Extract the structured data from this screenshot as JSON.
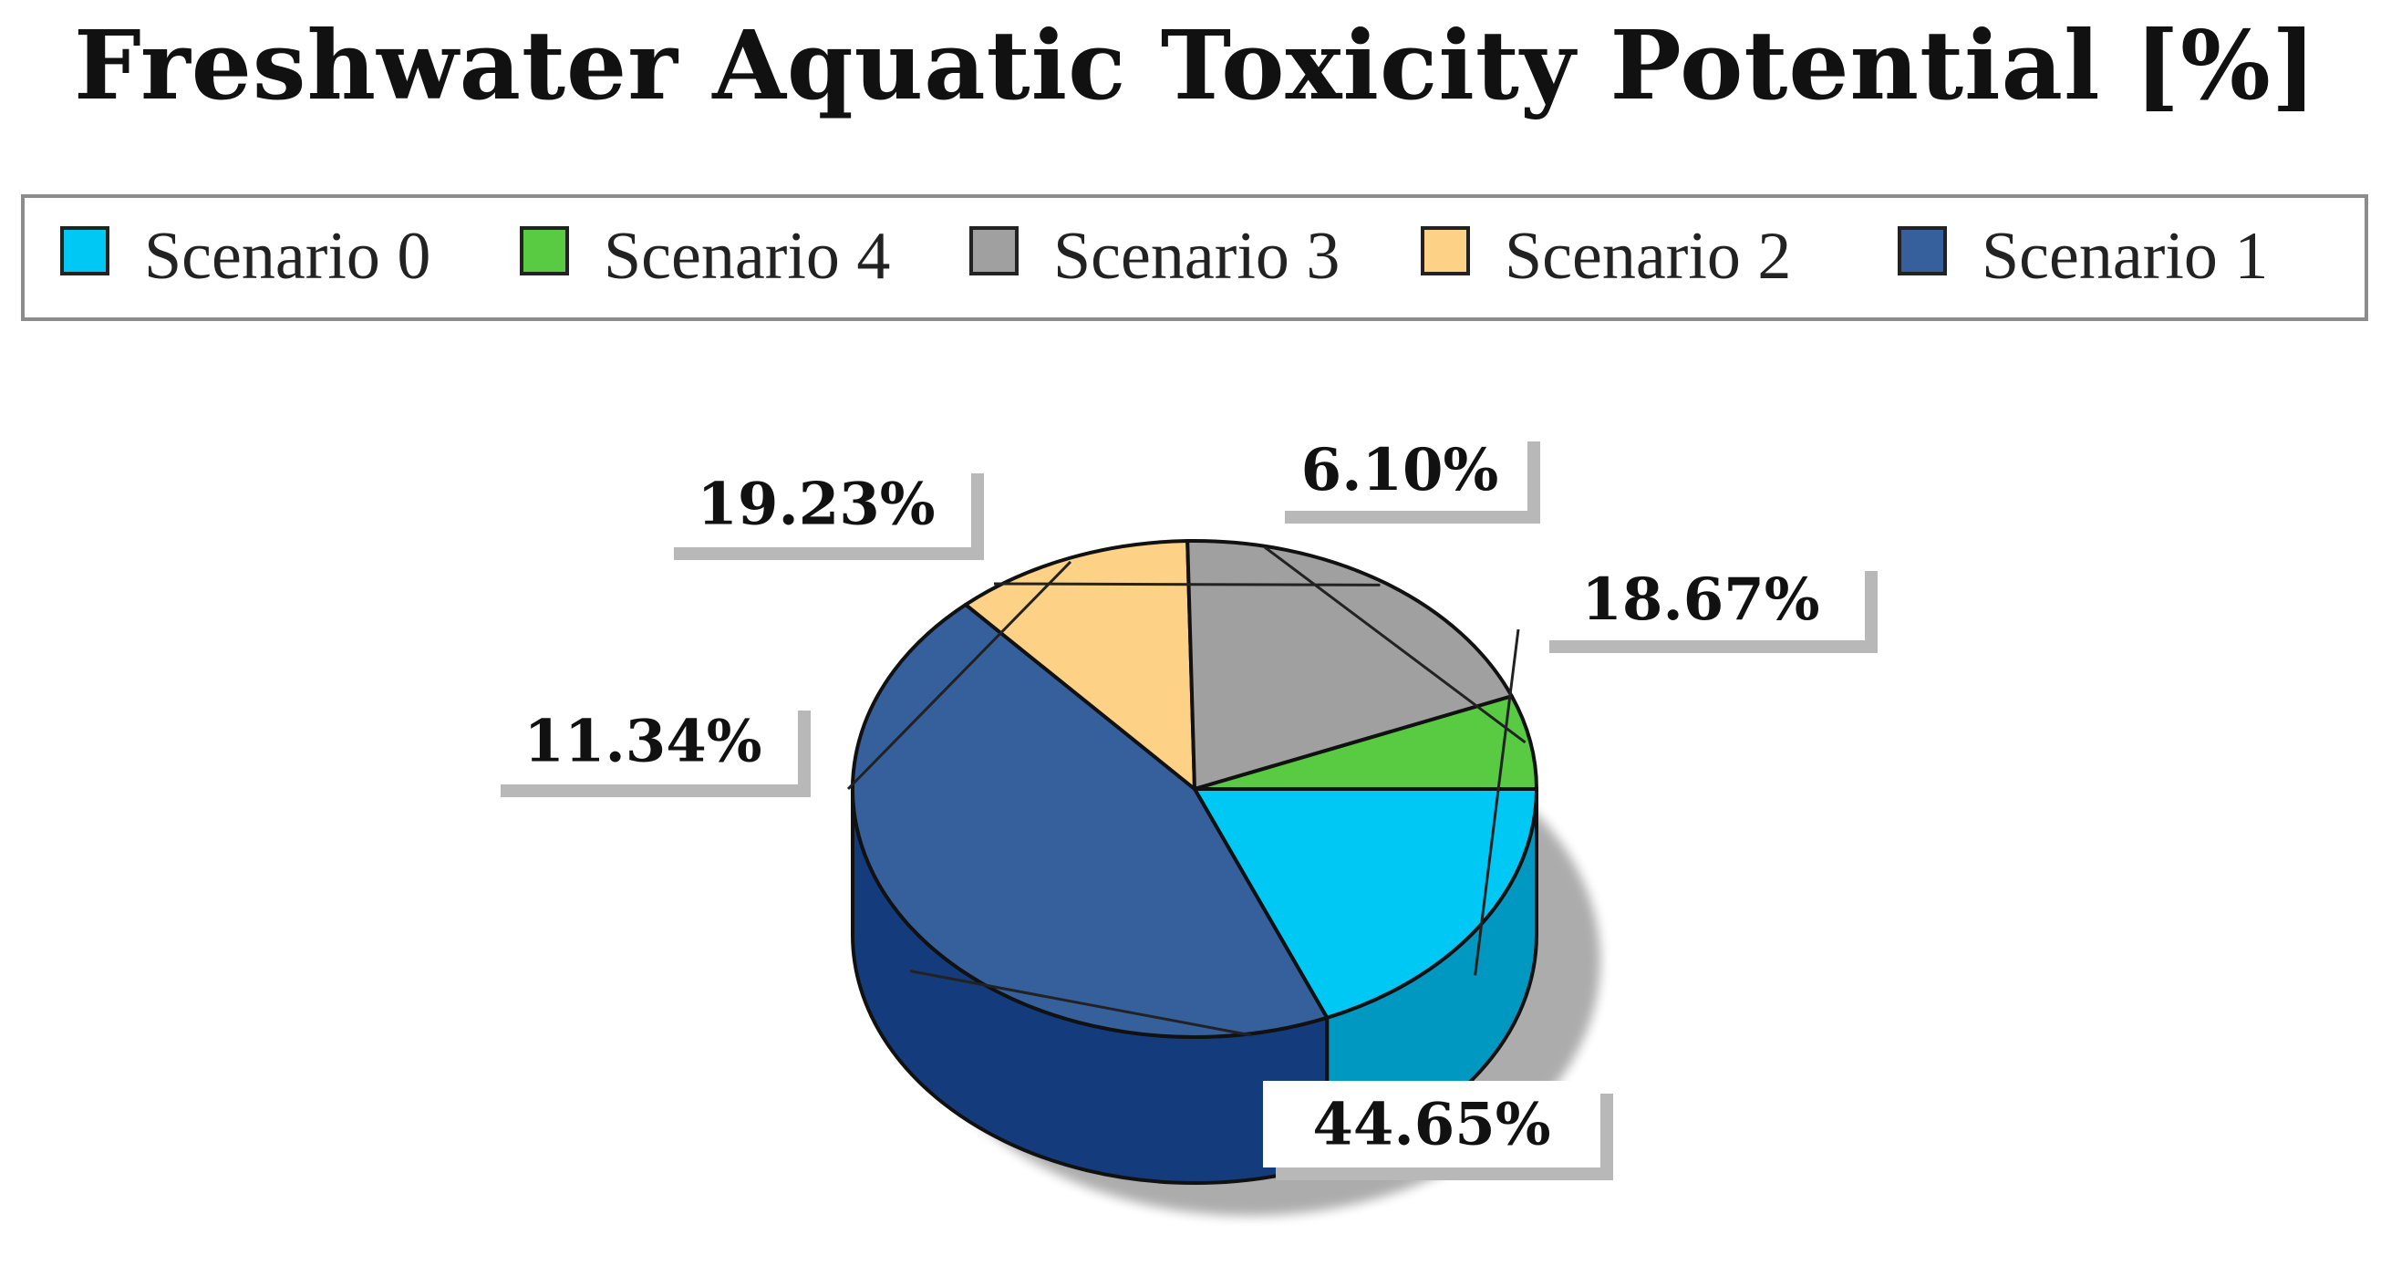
{
  "chart_data": {
    "type": "pie",
    "title": "Freshwater Aquatic Toxicity Potential [%]",
    "legend_position": "top",
    "three_d": true,
    "legend": [
      "Scenario 0",
      "Scenario 4",
      "Scenario 3",
      "Scenario 2",
      "Scenario 1"
    ],
    "slices": [
      {
        "name": "Scenario 0",
        "value": 18.67,
        "label": "18.67%",
        "color": "#00c8f5"
      },
      {
        "name": "Scenario 1",
        "value": 44.65,
        "label": "44.65%",
        "color": "#36609c"
      },
      {
        "name": "Scenario 2",
        "value": 11.34,
        "label": "11.34%",
        "color": "#fdd287"
      },
      {
        "name": "Scenario 3",
        "value": 19.23,
        "label": "19.23%",
        "color": "#a0a0a0"
      },
      {
        "name": "Scenario 4",
        "value": 6.1,
        "label": "6.10%",
        "color": "#59cb43"
      }
    ],
    "side_colors": {
      "Scenario 0": "#0098c0",
      "Scenario 1": "#143c7c",
      "Scenario 2": "#ddae60",
      "Scenario 3": "#7c7c7c",
      "Scenario 4": "#3a9a2c"
    }
  }
}
